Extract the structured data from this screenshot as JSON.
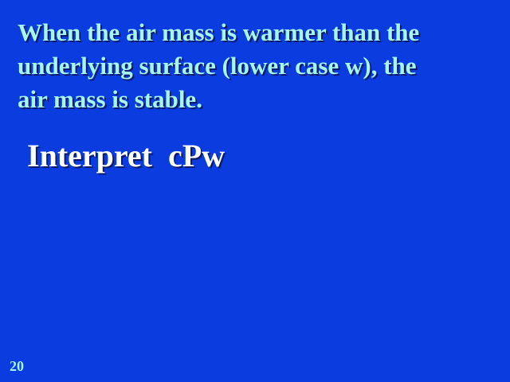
{
  "slide": {
    "heading_lines": [
      "When the air mass is warmer than the",
      "underlying  surface (lower case w), the",
      "air mass is stable."
    ],
    "prompt": "Interpret  cPw",
    "slide_number": "20"
  },
  "colors": {
    "background": "#0a3ce0",
    "heading_text": "#a8f5f0",
    "prompt_text": "#ffffff",
    "slide_number_text": "#a8f5f0"
  }
}
